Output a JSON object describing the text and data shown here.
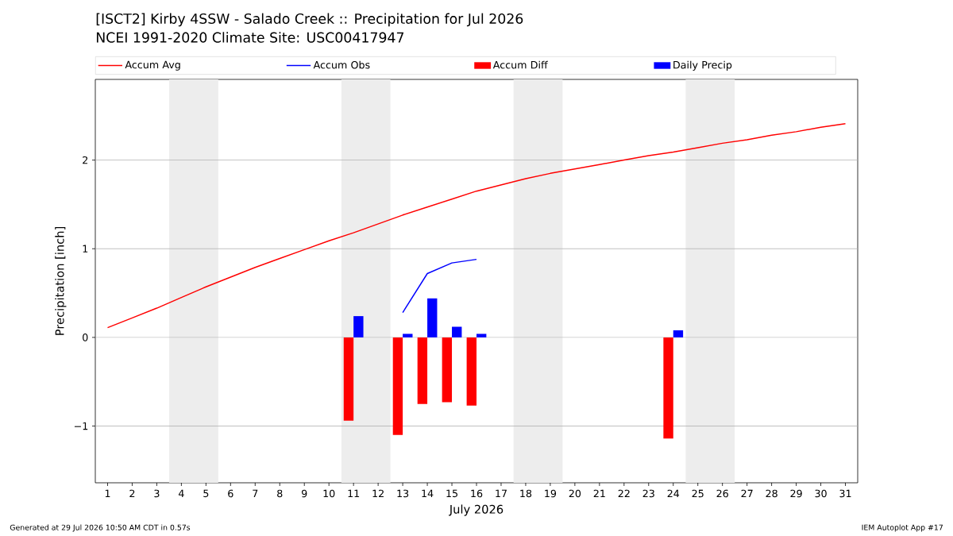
{
  "chart_data": {
    "type": "line",
    "title": "[ISCT2] Kirby 4SSW - Salado Creek :: Precipitation for Jul 2026",
    "subtitle": "NCEI 1991-2020 Climate Site: USC00417947",
    "xlabel": "July 2026",
    "ylabel": "Precipitation [inch]",
    "xlim": [
      0.5,
      31.5
    ],
    "xticks": [
      1,
      2,
      3,
      4,
      5,
      6,
      7,
      8,
      9,
      10,
      11,
      12,
      13,
      14,
      15,
      16,
      17,
      18,
      19,
      20,
      21,
      22,
      23,
      24,
      25,
      26,
      27,
      28,
      29,
      30,
      31
    ],
    "ylim": [
      -1.64,
      2.91
    ],
    "yticks": [
      {
        "value": -1,
        "label": "−1"
      },
      0,
      1,
      2
    ],
    "grid": "y",
    "legend": "top",
    "series": [
      {
        "name": "Accum Avg",
        "color": "#ff0000",
        "x": [
          1,
          2,
          3,
          4,
          5,
          6,
          7,
          8,
          9,
          10,
          11,
          12,
          13,
          14,
          15,
          16,
          17,
          18,
          19,
          20,
          21,
          22,
          23,
          24,
          25,
          26,
          27,
          28,
          29,
          30,
          31
        ],
        "values": [
          0.11,
          0.22,
          0.33,
          0.45,
          0.57,
          0.68,
          0.79,
          0.89,
          0.99,
          1.09,
          1.18,
          1.28,
          1.38,
          1.47,
          1.56,
          1.65,
          1.72,
          1.79,
          1.85,
          1.9,
          1.95,
          2.0,
          2.05,
          2.09,
          2.14,
          2.19,
          2.23,
          2.28,
          2.32,
          2.37,
          2.41
        ]
      },
      {
        "name": "Accum Obs",
        "color": "#0000ff",
        "x": [
          13,
          14,
          15,
          16
        ],
        "values": [
          0.28,
          0.72,
          0.84,
          0.88
        ]
      },
      {
        "name": "Accum Diff",
        "type": "bar",
        "color": "#ff0000",
        "x": [
          11,
          13,
          14,
          15,
          16,
          24
        ],
        "values": [
          -0.94,
          -1.1,
          -0.75,
          -0.73,
          -0.77,
          -1.14
        ]
      },
      {
        "name": "Daily Precip",
        "type": "bar",
        "color": "#0000ff",
        "x": [
          11,
          13,
          14,
          15,
          16,
          24
        ],
        "values": [
          0.24,
          0.04,
          0.44,
          0.12,
          0.04,
          0.08
        ]
      }
    ],
    "bands": [
      {
        "axis": "x",
        "from": 3.5,
        "to": 5.5,
        "color": "#ededed"
      },
      {
        "axis": "x",
        "from": 10.5,
        "to": 12.5,
        "color": "#ededed"
      },
      {
        "axis": "x",
        "from": 17.5,
        "to": 19.5,
        "color": "#ededed"
      },
      {
        "axis": "x",
        "from": 24.5,
        "to": 26.5,
        "color": "#ededed"
      }
    ],
    "annotations": [
      "Generated at 29 Jul 2026 10:50 AM CDT in 0.57s",
      "IEM Autoplot App #17"
    ]
  }
}
